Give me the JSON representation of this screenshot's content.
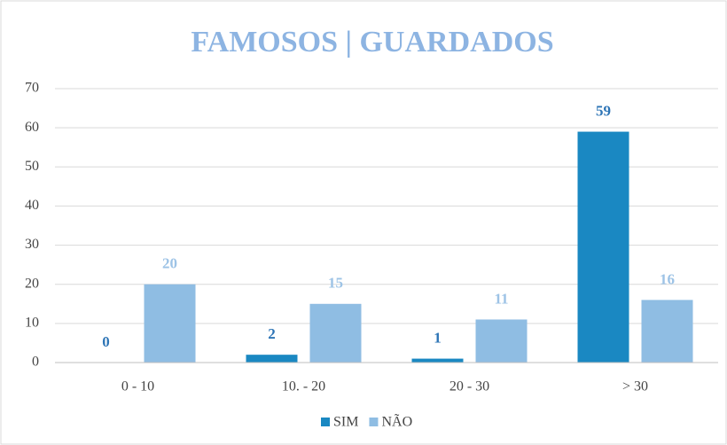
{
  "chart_data": {
    "type": "bar",
    "title": "FAMOSOS | GUARDADOS",
    "categories": [
      "0 - 10",
      "10. - 20",
      "20 - 30",
      "> 30"
    ],
    "series": [
      {
        "name": "SIM",
        "color": "#1a88c2",
        "values": [
          0,
          2,
          1,
          59
        ]
      },
      {
        "name": "NÃO",
        "color": "#8fbde3",
        "values": [
          20,
          15,
          11,
          16
        ]
      }
    ],
    "ylim": [
      0,
      70
    ],
    "yticks": [
      0,
      10,
      20,
      30,
      40,
      50,
      60,
      70
    ],
    "grid": true,
    "legend": "bottom"
  }
}
